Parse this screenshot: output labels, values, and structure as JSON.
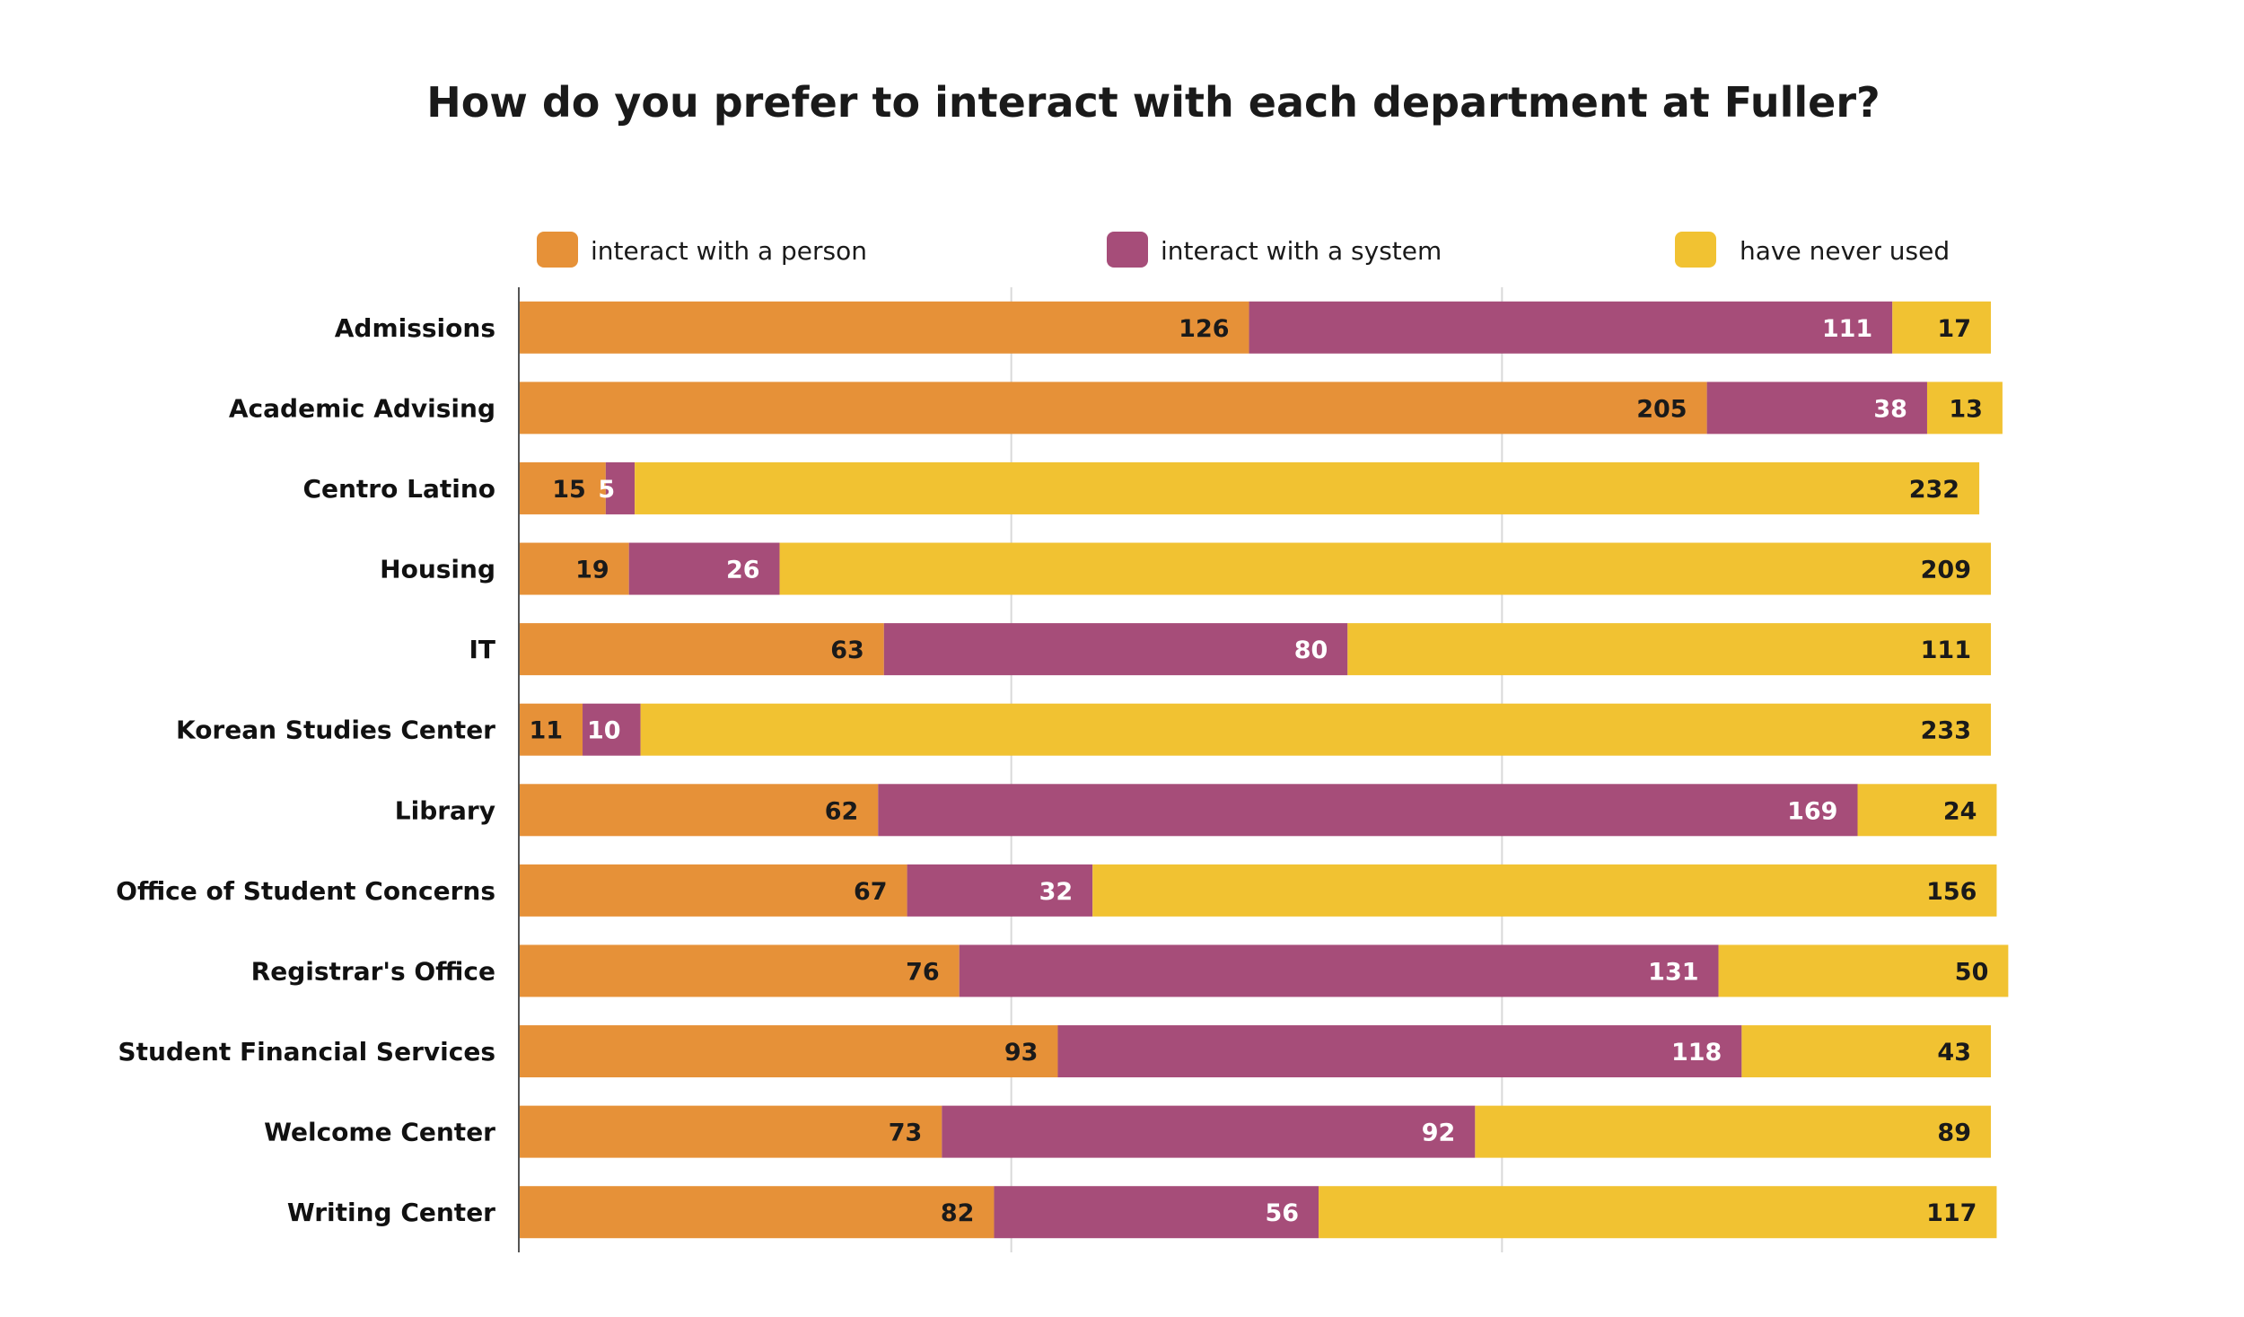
{
  "chart_data": {
    "type": "bar",
    "orientation": "horizontal",
    "stacked": true,
    "title": "How do you prefer to interact with each department at Fuller?",
    "xlabel": "",
    "ylabel": "",
    "xlim": [
      0,
      254
    ],
    "grid": true,
    "legend_position": "top",
    "categories": [
      "Admissions",
      "Academic Advising",
      "Centro Latino",
      "Housing",
      "IT",
      "Korean Studies Center",
      "Library",
      "Office of Student Concerns",
      "Registrar's Office",
      "Student Financial Services",
      "Welcome Center",
      "Writing Center"
    ],
    "series": [
      {
        "name": "interact with a person",
        "color": "#E69138",
        "label_color": "#1a1a1a",
        "values": [
          126,
          205,
          15,
          19,
          63,
          11,
          62,
          67,
          76,
          93,
          73,
          82
        ]
      },
      {
        "name": "interact with a system",
        "color": "#A64D79",
        "label_color": "#ffffff",
        "values": [
          111,
          38,
          5,
          26,
          80,
          10,
          169,
          32,
          131,
          118,
          92,
          56
        ]
      },
      {
        "name": "have never used",
        "color": "#F1C232",
        "label_color": "#1a1a1a",
        "values": [
          17,
          13,
          232,
          209,
          111,
          233,
          24,
          156,
          50,
          43,
          89,
          117
        ]
      }
    ]
  }
}
